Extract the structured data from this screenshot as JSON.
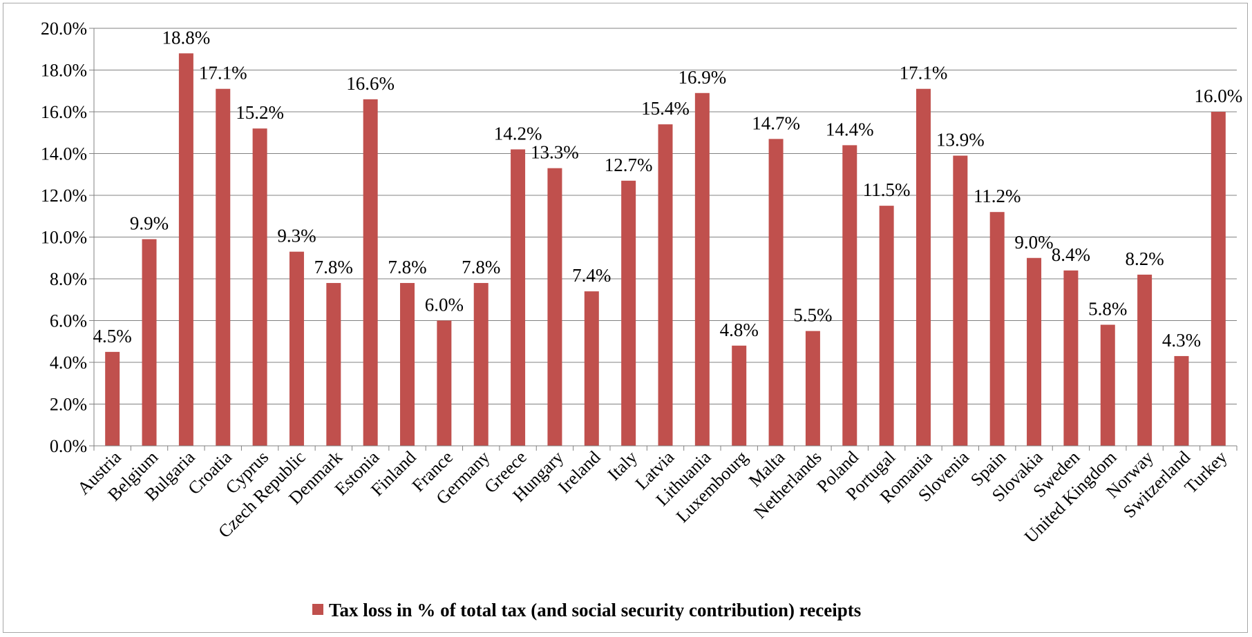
{
  "chart_data": {
    "type": "bar",
    "categories": [
      "Austria",
      "Belgium",
      "Bulgaria",
      "Croatia",
      "Cyprus",
      "Czech Republic",
      "Denmark",
      "Estonia",
      "Finland",
      "France",
      "Germany",
      "Greece",
      "Hungary",
      "Ireland",
      "Italy",
      "Latvia",
      "Lithuania",
      "Luxembourg",
      "Malta",
      "Netherlands",
      "Poland",
      "Portugal",
      "Romania",
      "Slovenia",
      "Spain",
      "Slovakia",
      "Sweden",
      "United Kingdom",
      "Norway",
      "Switzerland",
      "Turkey"
    ],
    "series": [
      {
        "name": "Tax loss in % of total tax (and social security contribution) receipts",
        "values": [
          4.5,
          9.9,
          18.8,
          17.1,
          15.2,
          9.3,
          7.8,
          16.6,
          7.8,
          6.0,
          7.8,
          14.2,
          13.3,
          7.4,
          12.7,
          15.4,
          16.9,
          4.8,
          14.7,
          5.5,
          14.4,
          11.5,
          17.1,
          13.9,
          11.2,
          9.0,
          8.4,
          5.8,
          8.2,
          4.3,
          16.0
        ],
        "data_labels": [
          "4.5%",
          "9.9%",
          "18.8%",
          "17.1%",
          "15.2%",
          "9.3%",
          "7.8%",
          "16.6%",
          "7.8%",
          "6.0%",
          "7.8%",
          "14.2%",
          "13.3%",
          "7.4%",
          "12.7%",
          "15.4%",
          "16.9%",
          "4.8%",
          "14.7%",
          "5.5%",
          "14.4%",
          "11.5%",
          "17.1%",
          "13.9%",
          "11.2%",
          "9.0%",
          "8.4%",
          "5.8%",
          "8.2%",
          "4.3%",
          "16.0%"
        ],
        "color": "#c0504d"
      }
    ],
    "y_ticks": [
      "0.0%",
      "2.0%",
      "4.0%",
      "6.0%",
      "8.0%",
      "10.0%",
      "12.0%",
      "14.0%",
      "16.0%",
      "18.0%",
      "20.0%"
    ],
    "ylim": [
      0,
      20
    ],
    "grid": true,
    "legend_position": "bottom",
    "gridline_color": "#808080",
    "axis_color": "#808080"
  }
}
